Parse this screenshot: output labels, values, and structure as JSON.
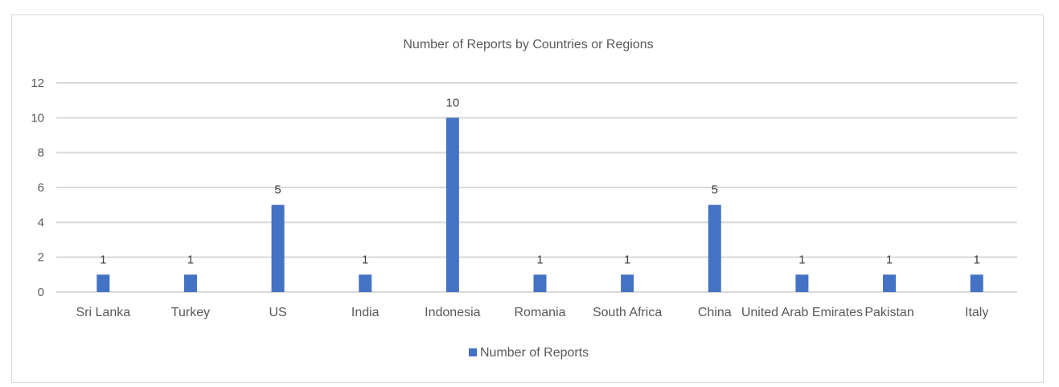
{
  "chart_data": {
    "type": "bar",
    "title": "Number of Reports by Countries or Regions",
    "categories": [
      "Sri Lanka",
      "Turkey",
      "US",
      "India",
      "Indonesia",
      "Romania",
      "South Africa",
      "China",
      "United Arab Emirates",
      "Pakistan",
      "Italy"
    ],
    "series": [
      {
        "name": "Number of Reports",
        "values": [
          1,
          1,
          5,
          1,
          10,
          1,
          1,
          5,
          1,
          1,
          1
        ],
        "color": "#4472c4"
      }
    ],
    "ylim": [
      0,
      12
    ],
    "yticks": [
      0,
      2,
      4,
      6,
      8,
      10,
      12
    ],
    "grid": true,
    "legend": "bottom",
    "data_labels": true,
    "gridline_color": "#d9d9d9"
  }
}
